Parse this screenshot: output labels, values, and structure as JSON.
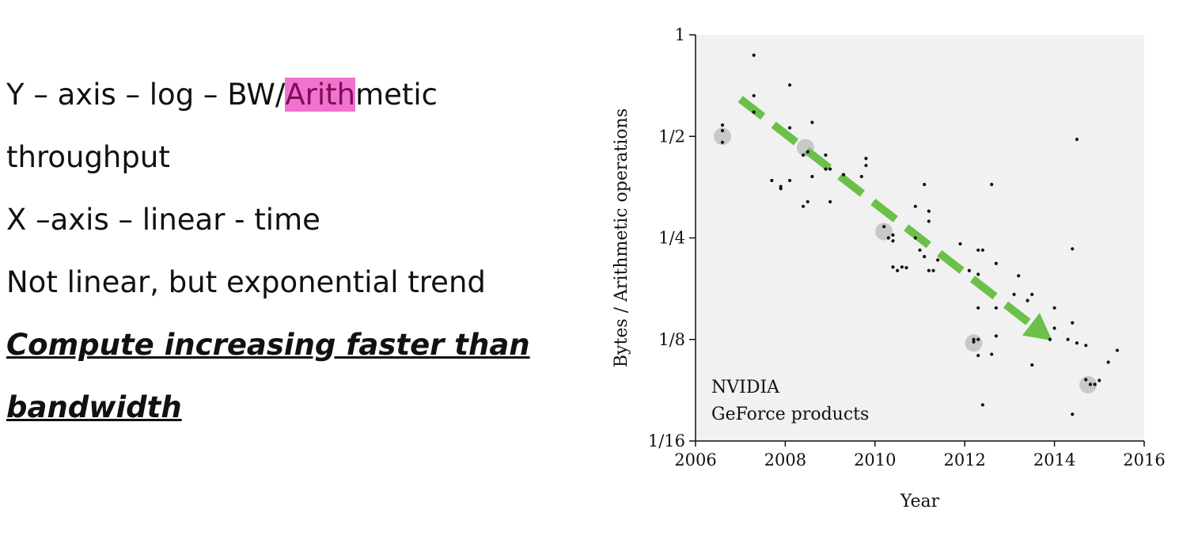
{
  "slide": {
    "line1_prefix": "Y – axis – log – BW/",
    "line1_highlight": "Arith",
    "line1_suffix": "metic",
    "line2": "throughput",
    "line3": "X –axis – linear - time",
    "line4": "Not linear, but exponential trend",
    "line5": "Compute increasing faster than",
    "line6": "bandwidth",
    "highlight_color": "#f272d0"
  },
  "chart_data": {
    "type": "scatter",
    "title": "",
    "xlabel": "Year",
    "ylabel": "Bytes / Arithmetic operations",
    "xlim": [
      2006,
      2016
    ],
    "ylim": [
      0.0625,
      1
    ],
    "yscale": "log2",
    "xticks": [
      2006,
      2008,
      2010,
      2012,
      2014,
      2016
    ],
    "yticks": [
      {
        "value": 1,
        "label": "1"
      },
      {
        "value": 0.5,
        "label": "1/2"
      },
      {
        "value": 0.25,
        "label": "1/4"
      },
      {
        "value": 0.125,
        "label": "1/8"
      },
      {
        "value": 0.0625,
        "label": "1/16"
      }
    ],
    "annotation_lines": [
      "NVIDIA",
      "GeForce products"
    ],
    "grid": false,
    "background_color": "#f1f1f1",
    "point_color": "#111111",
    "highlight_color": "#c8c8c8",
    "trend_color": "#6cc04a",
    "series": [
      {
        "points": [
          [
            2006.6,
            0.54
          ],
          [
            2006.6,
            0.52
          ],
          [
            2006.6,
            0.48
          ],
          [
            2007.3,
            0.87
          ],
          [
            2007.3,
            0.66
          ],
          [
            2007.3,
            0.59
          ],
          [
            2007.7,
            0.37
          ],
          [
            2007.9,
            0.355
          ],
          [
            2007.9,
            0.35
          ],
          [
            2008.1,
            0.37
          ],
          [
            2008.1,
            0.53
          ],
          [
            2008.1,
            0.71
          ],
          [
            2008.4,
            0.44
          ],
          [
            2008.4,
            0.31
          ],
          [
            2008.5,
            0.32
          ],
          [
            2008.5,
            0.45
          ],
          [
            2008.6,
            0.38
          ],
          [
            2008.6,
            0.55
          ],
          [
            2008.9,
            0.44
          ],
          [
            2008.9,
            0.4
          ],
          [
            2009.0,
            0.4
          ],
          [
            2009.0,
            0.32
          ],
          [
            2009.3,
            0.385
          ],
          [
            2009.7,
            0.38
          ],
          [
            2009.8,
            0.41
          ],
          [
            2009.8,
            0.43
          ],
          [
            2010.2,
            0.27
          ],
          [
            2010.3,
            0.25
          ],
          [
            2010.4,
            0.245
          ],
          [
            2010.4,
            0.255
          ],
          [
            2010.4,
            0.205
          ],
          [
            2010.5,
            0.2
          ],
          [
            2010.6,
            0.205
          ],
          [
            2010.7,
            0.204
          ],
          [
            2010.9,
            0.25
          ],
          [
            2010.9,
            0.31
          ],
          [
            2011.0,
            0.23
          ],
          [
            2011.1,
            0.22
          ],
          [
            2011.1,
            0.36
          ],
          [
            2011.2,
            0.3
          ],
          [
            2011.2,
            0.28
          ],
          [
            2011.2,
            0.2
          ],
          [
            2011.3,
            0.2
          ],
          [
            2011.4,
            0.215
          ],
          [
            2011.9,
            0.24
          ],
          [
            2012.1,
            0.2
          ],
          [
            2012.2,
            0.125
          ],
          [
            2012.2,
            0.123
          ],
          [
            2012.3,
            0.23
          ],
          [
            2012.3,
            0.195
          ],
          [
            2012.3,
            0.155
          ],
          [
            2012.3,
            0.125
          ],
          [
            2012.3,
            0.112
          ],
          [
            2012.4,
            0.23
          ],
          [
            2012.4,
            0.08
          ],
          [
            2012.6,
            0.36
          ],
          [
            2012.6,
            0.113
          ],
          [
            2012.7,
            0.21
          ],
          [
            2012.7,
            0.155
          ],
          [
            2012.7,
            0.128
          ],
          [
            2013.1,
            0.17
          ],
          [
            2013.2,
            0.193
          ],
          [
            2013.4,
            0.163
          ],
          [
            2013.5,
            0.17
          ],
          [
            2013.5,
            0.105
          ],
          [
            2013.9,
            0.125
          ],
          [
            2014.0,
            0.135
          ],
          [
            2014.0,
            0.155
          ],
          [
            2014.3,
            0.125
          ],
          [
            2014.4,
            0.075
          ],
          [
            2014.4,
            0.14
          ],
          [
            2014.4,
            0.232
          ],
          [
            2014.5,
            0.49
          ],
          [
            2014.5,
            0.122
          ],
          [
            2014.7,
            0.12
          ],
          [
            2014.7,
            0.095
          ],
          [
            2014.8,
            0.092
          ],
          [
            2014.9,
            0.092
          ],
          [
            2015.0,
            0.0945
          ],
          [
            2015.2,
            0.107
          ],
          [
            2015.4,
            0.116
          ]
        ]
      }
    ],
    "highlighted_points": [
      [
        2006.6,
        0.5
      ],
      [
        2008.45,
        0.463
      ],
      [
        2010.2,
        0.261
      ],
      [
        2012.2,
        0.122
      ],
      [
        2014.75,
        0.0918
      ]
    ],
    "trend_arrow": {
      "from": [
        2007.0,
        0.645
      ],
      "to": [
        2013.95,
        0.124
      ]
    }
  }
}
